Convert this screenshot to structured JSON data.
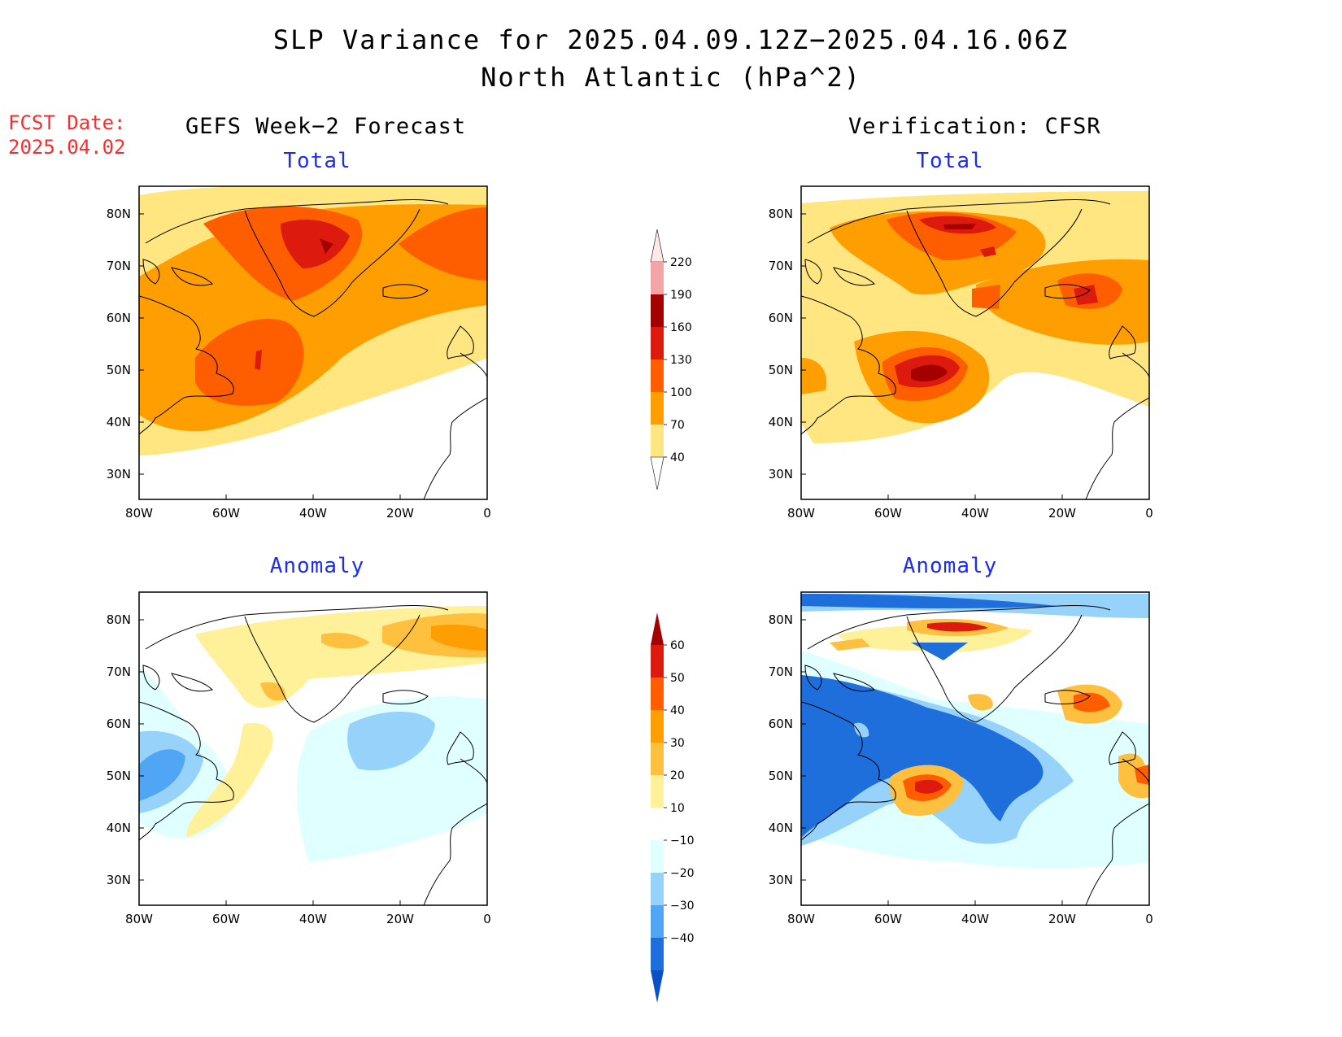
{
  "title_line1": "SLP Variance for 2025.04.09.12Z−2025.04.16.06Z",
  "title_line2": "North Atlantic (hPa^2)",
  "fcst_label": "FCST Date:",
  "fcst_date": "2025.04.02",
  "left_column_title": "GEFS Week−2 Forecast",
  "right_column_title": "Verification: CFSR",
  "panels": [
    {
      "id": "forecast-total",
      "subtitle": "Total"
    },
    {
      "id": "verification-total",
      "subtitle": "Total"
    },
    {
      "id": "forecast-anomaly",
      "subtitle": "Anomaly"
    },
    {
      "id": "verification-anomaly",
      "subtitle": "Anomaly"
    }
  ],
  "axes": {
    "lon_labels": [
      "80W",
      "60W",
      "40W",
      "20W",
      "0"
    ],
    "lat_labels": [
      "80N",
      "70N",
      "60N",
      "50N",
      "40N",
      "30N"
    ]
  },
  "colorbar_total": {
    "labels": [
      "220",
      "190",
      "160",
      "130",
      "100",
      "70",
      "40"
    ],
    "colors": [
      "#f4a3a6",
      "#a50000",
      "#dc1a0e",
      "#ff5e00",
      "#ff9e00",
      "#ffe680"
    ]
  },
  "colorbar_anomaly": {
    "labels": [
      "60",
      "50",
      "40",
      "30",
      "20",
      "10",
      "−10",
      "−20",
      "−30",
      "−40"
    ],
    "colors": [
      "#a50000",
      "#dc1a0e",
      "#ff5e00",
      "#ff9e00",
      "#ffc040",
      "#fff09a",
      "#ffffff",
      "#e0ffff",
      "#96d2fa",
      "#50a5f5",
      "#1e6edc",
      "#0a50c8"
    ]
  }
}
